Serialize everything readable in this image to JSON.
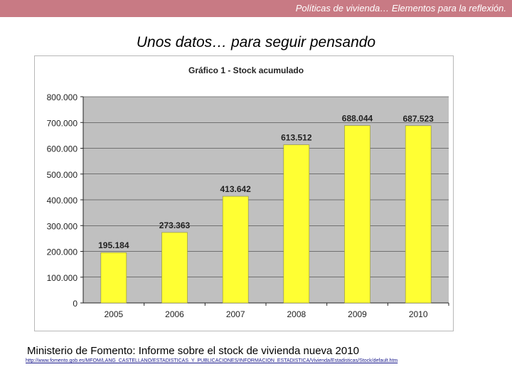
{
  "header": {
    "text": "Políticas de vivienda… Elementos  para la reflexión."
  },
  "slide": {
    "title": "Unos datos… para seguir pensando"
  },
  "source": {
    "text": "Ministerio de Fomento: Informe sobre el stock  de vivienda nueva 2010",
    "link": "http://www.fomento.gob.es/MFOM/LANG_CASTELLANO/ESTADISTICAS_Y_PUBLICACIONES/INFORMACION_ESTADISTICA/Vivienda/Estadisticas/Stock/default.htm"
  },
  "colors": {
    "bar": "#ffff33",
    "bar_outline": "#8c8c3a",
    "plot_bg": "#c0c0c0",
    "header_bg": "#c87a84"
  },
  "chart_data": {
    "type": "bar",
    "title": "Gráfico 1 - Stock acumulado",
    "categories": [
      "2005",
      "2006",
      "2007",
      "2008",
      "2009",
      "2010"
    ],
    "values": [
      195184,
      273363,
      413642,
      613512,
      688044,
      687523
    ],
    "data_labels": [
      "195.184",
      "273.363",
      "413.642",
      "613.512",
      "688.044",
      "687.523"
    ],
    "yticks": [
      0,
      100000,
      200000,
      300000,
      400000,
      500000,
      600000,
      700000,
      800000
    ],
    "ytick_labels": [
      "0",
      "100.000",
      "200.000",
      "300.000",
      "400.000",
      "500.000",
      "600.000",
      "700.000",
      "800.000"
    ],
    "ylim": [
      0,
      800000
    ],
    "xlabel": "",
    "ylabel": "",
    "grid": true,
    "legend": "none"
  }
}
